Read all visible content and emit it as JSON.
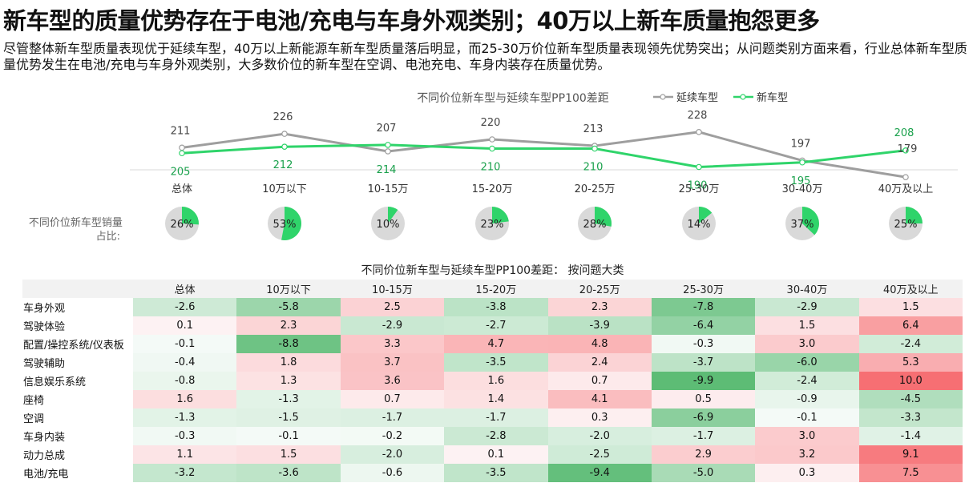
{
  "title": "新车型的质量优势存在于电池/充电与车身外观类别；40万以上新车质量抱怨更多",
  "subtitle": "尽管整体新车型质量表现优于延续车型，40万以上新能源车新车型质量落后明显，而25-30万价位新车型质量表现领先优势突出；从问题类别方面来看，行业总体新车型质量优势发生在电池/充电与车身外观类别，大多数价位的新车型在空调、电池充电、车身内装存在质量优势。",
  "colors": {
    "gray": "#9e9e9e",
    "green": "#2fd46a",
    "donut_bg": "#d9d9d9"
  },
  "chart_data": [
    {
      "type": "line",
      "title": "不同价位新车型与延续车型PP100差距",
      "categories": [
        "总体",
        "10万以下",
        "10-15万",
        "15-20万",
        "20-25万",
        "25-30万",
        "30-40万",
        "40万及以上"
      ],
      "series": [
        {
          "name": "延续车型",
          "values": [
            211,
            226,
            207,
            220,
            213,
            228,
            197,
            179
          ]
        },
        {
          "name": "新车型",
          "values": [
            205,
            212,
            214,
            210,
            210,
            190,
            195,
            208
          ]
        }
      ],
      "legend": "top-right"
    },
    {
      "type": "pie",
      "title": "不同价位新车型销量占比:",
      "categories": [
        "总体",
        "10万以下",
        "10-15万",
        "15-20万",
        "20-25万",
        "25-30万",
        "30-40万",
        "40万及以上"
      ],
      "values": [
        26,
        53,
        10,
        23,
        28,
        14,
        37,
        25
      ],
      "labels": [
        "26%",
        "53%",
        "10%",
        "23%",
        "28%",
        "14%",
        "37%",
        "25%"
      ]
    },
    {
      "type": "heatmap",
      "title": "不同价位新车型与延续车型PP100差距： 按问题大类",
      "columns": [
        "总体",
        "10万以下",
        "10-15万",
        "15-20万",
        "20-25万",
        "25-30万",
        "30-40万",
        "40万及以上"
      ],
      "rows": [
        {
          "label": "车身外观",
          "values": [
            "-2.6",
            "-5.8",
            "2.5",
            "-3.8",
            "2.3",
            "-7.8",
            "-2.9",
            "1.5"
          ]
        },
        {
          "label": "驾驶体验",
          "values": [
            "0.1",
            "2.3",
            "-2.9",
            "-2.7",
            "-3.9",
            "-6.4",
            "1.5",
            "6.4"
          ]
        },
        {
          "label": "配置/操控系统/仪表板",
          "values": [
            "-0.1",
            "-8.8",
            "3.3",
            "4.7",
            "4.8",
            "-0.3",
            "3.0",
            "-2.4"
          ]
        },
        {
          "label": "驾驶辅助",
          "values": [
            "-0.4",
            "1.8",
            "3.7",
            "-3.5",
            "2.4",
            "-3.7",
            "-6.0",
            "5.3"
          ]
        },
        {
          "label": "信息娱乐系统",
          "values": [
            "-0.8",
            "1.3",
            "3.6",
            "1.6",
            "0.7",
            "-9.9",
            "-2.4",
            "10.0"
          ]
        },
        {
          "label": "座椅",
          "values": [
            "1.6",
            "-1.3",
            "0.7",
            "1.4",
            "4.1",
            "0.5",
            "-0.9",
            "-4.5"
          ]
        },
        {
          "label": "空调",
          "values": [
            "-1.3",
            "-1.5",
            "-1.7",
            "-1.7",
            "0.3",
            "-6.9",
            "-0.1",
            "-3.3"
          ]
        },
        {
          "label": "车身内装",
          "values": [
            "-0.3",
            "-0.1",
            "-0.2",
            "-2.8",
            "-2.0",
            "-1.7",
            "3.0",
            "-1.4"
          ]
        },
        {
          "label": "动力总成",
          "values": [
            "1.1",
            "1.5",
            "-2.0",
            "0.1",
            "-2.5",
            "2.9",
            "3.2",
            "9.1"
          ]
        },
        {
          "label": "电池/充电",
          "values": [
            "-3.2",
            "-3.6",
            "-0.6",
            "-3.5",
            "-9.4",
            "-5.0",
            "0.3",
            "7.5"
          ]
        }
      ]
    }
  ]
}
